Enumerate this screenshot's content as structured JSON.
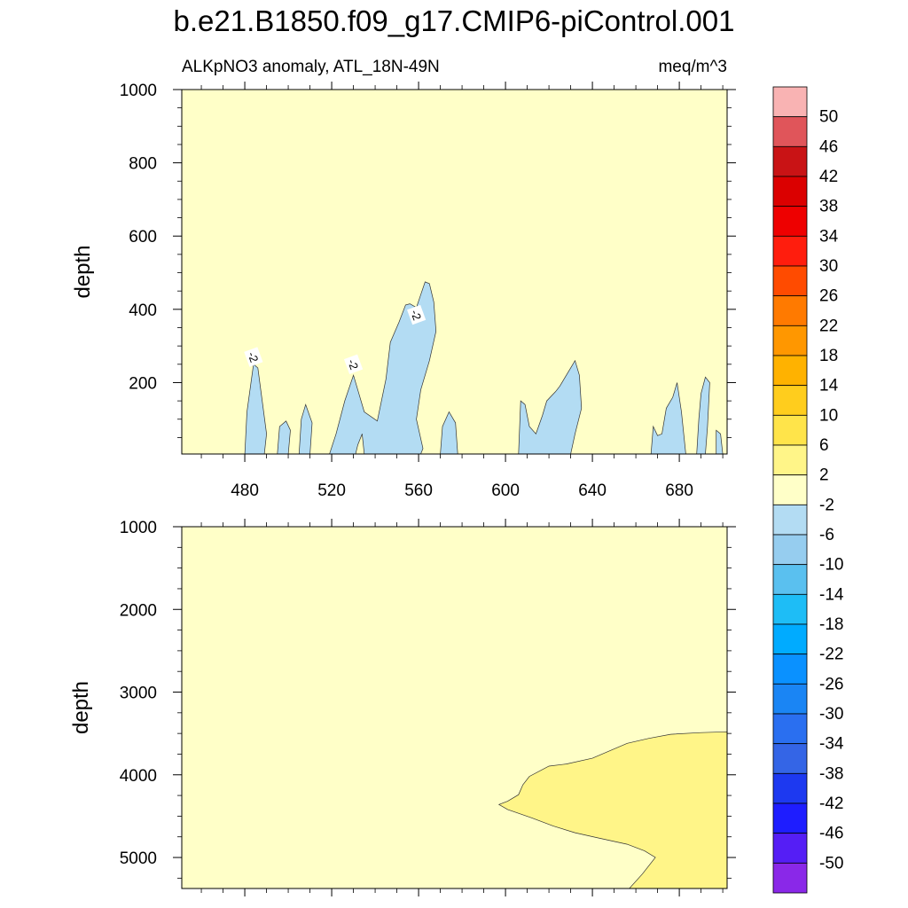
{
  "figure": {
    "title": "b.e21.B1850.f09_g17.CMIP6-piControl.001",
    "subtitle_left": "ALKpNO3 anomaly, ATL_18N-49N",
    "subtitle_right": "meq/m^3"
  },
  "chart_data": [
    {
      "type": "heatmap",
      "panel": "upper",
      "variable": "ALKpNO3 anomaly",
      "region": "ATL_18N-49N",
      "units": "meq/m^3",
      "xlabel": "",
      "ylabel": "depth",
      "xlim": [
        451,
        702
      ],
      "ylim": [
        1000,
        5
      ],
      "x_ticks": [
        480,
        520,
        560,
        600,
        640,
        680
      ],
      "y_ticks": [
        200,
        400,
        600,
        800,
        1000
      ],
      "background_level": "-2 to 2",
      "contour_labels": [
        {
          "text": "-2",
          "x": 484,
          "depth": 270
        },
        {
          "text": "-2",
          "x": 530,
          "depth": 250
        },
        {
          "text": "-2",
          "x": 559,
          "depth": 385
        }
      ],
      "regions": [
        {
          "level": "-6 to -2",
          "polygon": [
            [
              480,
              5
            ],
            [
              481,
              120
            ],
            [
              484,
              250
            ],
            [
              486,
              240
            ],
            [
              488,
              150
            ],
            [
              490,
              60
            ],
            [
              489,
              5
            ]
          ]
        },
        {
          "level": "-6 to -2",
          "polygon": [
            [
              495,
              5
            ],
            [
              496,
              80
            ],
            [
              499,
              95
            ],
            [
              501,
              70
            ],
            [
              500,
              5
            ]
          ]
        },
        {
          "level": "-6 to -2",
          "polygon": [
            [
              505,
              5
            ],
            [
              506,
              100
            ],
            [
              508,
              140
            ],
            [
              511,
              90
            ],
            [
              510,
              5
            ]
          ]
        },
        {
          "level": "-6 to -2",
          "polygon": [
            [
              519,
              5
            ],
            [
              522,
              60
            ],
            [
              526,
              150
            ],
            [
              530,
              220
            ],
            [
              532,
              180
            ],
            [
              535,
              120
            ],
            [
              541,
              95
            ],
            [
              545,
              210
            ],
            [
              547,
              310
            ],
            [
              551,
              365
            ],
            [
              554,
              412
            ],
            [
              556,
              415
            ],
            [
              559,
              405
            ],
            [
              561,
              440
            ],
            [
              563,
              475
            ],
            [
              565,
              470
            ],
            [
              567,
              420
            ],
            [
              568,
              340
            ],
            [
              565,
              260
            ],
            [
              561,
              180
            ],
            [
              559,
              100
            ],
            [
              562,
              20
            ],
            [
              561,
              5
            ],
            [
              535,
              5
            ],
            [
              534,
              60
            ],
            [
              532,
              30
            ],
            [
              531,
              5
            ]
          ]
        },
        {
          "level": "-6 to -2",
          "polygon": [
            [
              570,
              5
            ],
            [
              571,
              80
            ],
            [
              574,
              120
            ],
            [
              577,
              90
            ],
            [
              578,
              5
            ]
          ]
        },
        {
          "level": "-6 to -2",
          "polygon": [
            [
              606,
              5
            ],
            [
              607,
              150
            ],
            [
              609,
              140
            ],
            [
              611,
              80
            ],
            [
              614,
              60
            ],
            [
              617,
              110
            ],
            [
              619,
              150
            ],
            [
              623,
              175
            ],
            [
              625,
              190
            ],
            [
              627,
              210
            ],
            [
              630,
              240
            ],
            [
              632,
              260
            ],
            [
              634,
              220
            ],
            [
              635,
              130
            ],
            [
              632,
              60
            ],
            [
              630,
              5
            ]
          ]
        },
        {
          "level": "-6 to -2",
          "polygon": [
            [
              667,
              5
            ],
            [
              668,
              80
            ],
            [
              670,
              55
            ],
            [
              672,
              60
            ],
            [
              674,
              130
            ],
            [
              677,
              160
            ],
            [
              679,
              200
            ],
            [
              681,
              120
            ],
            [
              683,
              5
            ]
          ]
        },
        {
          "level": "-6 to -2",
          "polygon": [
            [
              688,
              5
            ],
            [
              689,
              100
            ],
            [
              690,
              170
            ],
            [
              692,
              215
            ],
            [
              694,
              200
            ],
            [
              693,
              80
            ],
            [
              692,
              5
            ]
          ]
        },
        {
          "level": "-6 to -2",
          "polygon": [
            [
              697,
              5
            ],
            [
              697,
              70
            ],
            [
              699,
              60
            ],
            [
              700,
              5
            ]
          ]
        }
      ]
    },
    {
      "type": "heatmap",
      "panel": "lower",
      "variable": "ALKpNO3 anomaly",
      "region": "ATL_18N-49N",
      "units": "meq/m^3",
      "xlabel": "",
      "ylabel": "depth",
      "xlim": [
        451,
        702
      ],
      "ylim": [
        1000,
        5375
      ],
      "x_ticks": [
        480,
        520,
        560,
        600,
        640,
        680
      ],
      "y_ticks": [
        1000,
        2000,
        3000,
        4000,
        5000
      ],
      "background_level": "-2 to 2",
      "regions": [
        {
          "level": "2 to 6",
          "polygon": [
            [
              702,
              3480
            ],
            [
              690,
              3490
            ],
            [
              676,
              3510
            ],
            [
              666,
              3560
            ],
            [
              656,
              3620
            ],
            [
              640,
              3800
            ],
            [
              628,
              3870
            ],
            [
              620,
              3895
            ],
            [
              611,
              4020
            ],
            [
              608,
              4120
            ],
            [
              606,
              4240
            ],
            [
              601,
              4320
            ],
            [
              597,
              4360
            ],
            [
              601,
              4420
            ],
            [
              612,
              4520
            ],
            [
              622,
              4620
            ],
            [
              632,
              4700
            ],
            [
              642,
              4760
            ],
            [
              656,
              4840
            ],
            [
              664,
              4920
            ],
            [
              669,
              5000
            ],
            [
              663,
              5200
            ],
            [
              657,
              5375
            ],
            [
              702,
              5375
            ]
          ]
        }
      ]
    }
  ],
  "colorbar": {
    "labels": [
      "50",
      "46",
      "42",
      "38",
      "34",
      "30",
      "26",
      "22",
      "18",
      "14",
      "10",
      "6",
      "2",
      "-2",
      "-6",
      "-10",
      "-14",
      "-18",
      "-22",
      "-26",
      "-30",
      "-34",
      "-38",
      "-42",
      "-46",
      "-50"
    ],
    "colors": [
      "#f9b3b3",
      "#e0555a",
      "#c91315",
      "#db0000",
      "#ee0000",
      "#ff1d0d",
      "#ff4b00",
      "#ff7a00",
      "#ff9700",
      "#ffb200",
      "#ffcd1d",
      "#ffe44a",
      "#fff588",
      "#ffffc8",
      "#b3dcf3",
      "#96cdef",
      "#5ac0ef",
      "#1ebdf6",
      "#00abff",
      "#0a91ff",
      "#1a85f4",
      "#2a6ff0",
      "#3465e6",
      "#1d39f0",
      "#1e1dff",
      "#551ef5",
      "#8a28e8"
    ]
  }
}
